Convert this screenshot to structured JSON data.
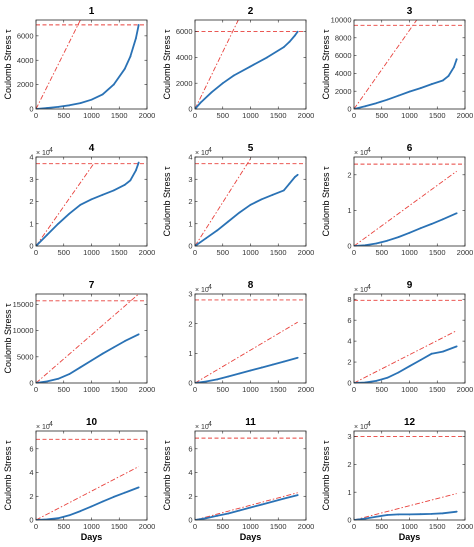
{
  "chart_data": [
    {
      "type": "line",
      "title": "1",
      "xlabel": "",
      "ylabel": "Coulomb Stress τ",
      "xlim": [
        0,
        2000
      ],
      "xticks": [
        "0",
        "500",
        "1000",
        "1500",
        "2000"
      ],
      "ylim": [
        0,
        7300
      ],
      "yticks": [
        0,
        2000,
        4000,
        6000
      ],
      "ytick_labels": [
        "0",
        "2000",
        "4000",
        "6000"
      ],
      "multiplier": "",
      "threshold": 6900,
      "rate_line": {
        "x": [
          0,
          800
        ],
        "y": [
          0,
          7300
        ]
      },
      "series": [
        {
          "x": [
            0,
            200,
            400,
            600,
            800,
            1000,
            1200,
            1400,
            1600,
            1700,
            1800,
            1850
          ],
          "y": [
            0,
            80,
            170,
            300,
            480,
            760,
            1200,
            2000,
            3300,
            4300,
            5800,
            6900
          ]
        }
      ]
    },
    {
      "type": "line",
      "title": "2",
      "xlabel": "",
      "ylabel": "Coulomb Stress τ",
      "xlim": [
        0,
        2000
      ],
      "xticks": [
        "0",
        "500",
        "1000",
        "1500",
        "2000"
      ],
      "ylim": [
        0,
        6900
      ],
      "yticks": [
        0,
        2000,
        4000,
        6000
      ],
      "ytick_labels": [
        "0",
        "2000",
        "4000",
        "6000"
      ],
      "multiplier": "",
      "threshold": 6000,
      "rate_line": {
        "x": [
          0,
          780
        ],
        "y": [
          0,
          6900
        ]
      },
      "series": [
        {
          "x": [
            0,
            100,
            300,
            500,
            700,
            1000,
            1300,
            1600,
            1700,
            1800,
            1850
          ],
          "y": [
            0,
            500,
            1300,
            2000,
            2600,
            3300,
            4000,
            4800,
            5200,
            5700,
            6000
          ]
        }
      ]
    },
    {
      "type": "line",
      "title": "3",
      "xlabel": "",
      "ylabel": "Coulomb Stress τ",
      "xlim": [
        0,
        2000
      ],
      "xticks": [
        "0",
        "500",
        "1000",
        "1500",
        "2000"
      ],
      "ylim": [
        0,
        10000
      ],
      "yticks": [
        0,
        2000,
        4000,
        6000,
        8000,
        10000
      ],
      "ytick_labels": [
        "0",
        "2000",
        "4000",
        "6000",
        "8000",
        "10000"
      ],
      "multiplier": "",
      "threshold": 9400,
      "rate_line": {
        "x": [
          0,
          1130
        ],
        "y": [
          0,
          10000
        ]
      },
      "series": [
        {
          "x": [
            0,
            200,
            400,
            600,
            800,
            1000,
            1200,
            1400,
            1600,
            1700,
            1800,
            1850
          ],
          "y": [
            0,
            300,
            650,
            1050,
            1500,
            1950,
            2350,
            2800,
            3200,
            3700,
            4700,
            5600
          ]
        }
      ]
    },
    {
      "type": "line",
      "title": "4",
      "xlabel": "",
      "ylabel": "",
      "xlim": [
        0,
        2000
      ],
      "xticks": [
        "0",
        "500",
        "1000",
        "1500",
        "2000"
      ],
      "ylim": [
        0,
        4
      ],
      "yticks": [
        0,
        1,
        2,
        3,
        4
      ],
      "ytick_labels": [
        "0",
        "1",
        "2",
        "3",
        "4"
      ],
      "multiplier": "× 10",
      "threshold": 3.7,
      "rate_line": {
        "x": [
          0,
          1040
        ],
        "y": [
          0,
          3.7
        ]
      },
      "series": [
        {
          "x": [
            0,
            200,
            400,
            600,
            800,
            1000,
            1200,
            1400,
            1600,
            1700,
            1800,
            1850
          ],
          "y": [
            0,
            0.5,
            1.0,
            1.45,
            1.85,
            2.1,
            2.3,
            2.5,
            2.75,
            2.95,
            3.4,
            3.75
          ]
        }
      ]
    },
    {
      "type": "line",
      "title": "5",
      "xlabel": "",
      "ylabel": "Coulomb Stress τ",
      "xlim": [
        0,
        2000
      ],
      "xticks": [
        "0",
        "500",
        "1000",
        "1500",
        "2000"
      ],
      "ylim": [
        0,
        4
      ],
      "yticks": [
        0,
        1,
        2,
        3,
        4
      ],
      "ytick_labels": [
        "0",
        "1",
        "2",
        "3",
        "4"
      ],
      "multiplier": "× 10",
      "threshold": 3.7,
      "rate_line": {
        "x": [
          0,
          1020
        ],
        "y": [
          0,
          4.0
        ]
      },
      "series": [
        {
          "x": [
            0,
            200,
            400,
            600,
            800,
            1000,
            1200,
            1400,
            1600,
            1700,
            1800,
            1850
          ],
          "y": [
            0,
            0.35,
            0.7,
            1.1,
            1.5,
            1.85,
            2.1,
            2.3,
            2.5,
            2.8,
            3.1,
            3.2
          ]
        }
      ]
    },
    {
      "type": "line",
      "title": "6",
      "xlabel": "",
      "ylabel": "Coulomb Stress τ",
      "xlim": [
        0,
        2000
      ],
      "xticks": [
        "0",
        "500",
        "1000",
        "1500",
        "2000"
      ],
      "ylim": [
        0,
        2.5
      ],
      "yticks": [
        0,
        1,
        2
      ],
      "ytick_labels": [
        "0",
        "1",
        "2"
      ],
      "multiplier": "× 10",
      "threshold": 2.3,
      "rate_line": {
        "x": [
          0,
          1850
        ],
        "y": [
          0,
          2.1
        ]
      },
      "series": [
        {
          "x": [
            0,
            200,
            400,
            600,
            800,
            1000,
            1200,
            1400,
            1600,
            1850
          ],
          "y": [
            0,
            0.02,
            0.07,
            0.15,
            0.25,
            0.37,
            0.5,
            0.62,
            0.75,
            0.92
          ]
        }
      ]
    },
    {
      "type": "line",
      "title": "7",
      "xlabel": "",
      "ylabel": "Coulomb Stress τ",
      "xlim": [
        0,
        2000
      ],
      "xticks": [
        "0",
        "500",
        "1000",
        "1500",
        "2000"
      ],
      "ylim": [
        0,
        17000
      ],
      "yticks": [
        0,
        5000,
        10000,
        15000
      ],
      "ytick_labels": [
        "0",
        "5000",
        "10000",
        "15000"
      ],
      "multiplier": "",
      "threshold": 15700,
      "rate_line": {
        "x": [
          0,
          1850
        ],
        "y": [
          0,
          17000
        ]
      },
      "series": [
        {
          "x": [
            0,
            200,
            400,
            600,
            800,
            1000,
            1200,
            1400,
            1600,
            1850
          ],
          "y": [
            0,
            300,
            800,
            1700,
            3000,
            4300,
            5600,
            6800,
            8000,
            9300
          ]
        }
      ]
    },
    {
      "type": "line",
      "title": "8",
      "xlabel": "",
      "ylabel": "",
      "xlim": [
        0,
        2000
      ],
      "xticks": [
        "0",
        "500",
        "1000",
        "1500",
        "2000"
      ],
      "ylim": [
        0,
        3
      ],
      "yticks": [
        0,
        1,
        2,
        3
      ],
      "ytick_labels": [
        "0",
        "1",
        "2",
        "3"
      ],
      "multiplier": "× 10",
      "threshold": 2.8,
      "rate_line": {
        "x": [
          0,
          1850
        ],
        "y": [
          0,
          2.05
        ]
      },
      "series": [
        {
          "x": [
            0,
            200,
            400,
            600,
            800,
            1000,
            1200,
            1400,
            1600,
            1850
          ],
          "y": [
            0,
            0.05,
            0.12,
            0.22,
            0.32,
            0.42,
            0.52,
            0.62,
            0.72,
            0.85
          ]
        }
      ]
    },
    {
      "type": "line",
      "title": "9",
      "xlabel": "",
      "ylabel": "",
      "xlim": [
        0,
        2000
      ],
      "xticks": [
        "0",
        "500",
        "1000",
        "1500",
        "2000"
      ],
      "ylim": [
        0,
        8.5
      ],
      "yticks": [
        0,
        2,
        4,
        6,
        8
      ],
      "ytick_labels": [
        "0",
        "2",
        "4",
        "6",
        "8"
      ],
      "multiplier": "× 10",
      "threshold": 7.9,
      "rate_line": {
        "x": [
          0,
          1850
        ],
        "y": [
          0,
          5.0
        ]
      },
      "series": [
        {
          "x": [
            0,
            200,
            400,
            600,
            800,
            1000,
            1200,
            1400,
            1600,
            1850
          ],
          "y": [
            0,
            0.05,
            0.2,
            0.5,
            1.0,
            1.6,
            2.2,
            2.8,
            3.0,
            3.5
          ]
        }
      ]
    },
    {
      "type": "line",
      "title": "10",
      "xlabel": "Days",
      "ylabel": "Coulomb Stress τ",
      "xlim": [
        0,
        2000
      ],
      "xticks": [
        "0",
        "500",
        "1000",
        "1500",
        "2000"
      ],
      "ylim": [
        0,
        7.5
      ],
      "yticks": [
        0,
        2,
        4,
        6
      ],
      "ytick_labels": [
        "0",
        "2",
        "4",
        "6"
      ],
      "multiplier": "× 10",
      "threshold": 6.8,
      "rate_line": {
        "x": [
          0,
          1850
        ],
        "y": [
          0,
          4.5
        ]
      },
      "series": [
        {
          "x": [
            0,
            200,
            400,
            600,
            800,
            1000,
            1200,
            1400,
            1600,
            1850
          ],
          "y": [
            0,
            0.05,
            0.15,
            0.4,
            0.75,
            1.15,
            1.55,
            1.95,
            2.3,
            2.75
          ]
        }
      ]
    },
    {
      "type": "line",
      "title": "11",
      "xlabel": "Days",
      "ylabel": "Coulomb Stress τ",
      "xlim": [
        0,
        2000
      ],
      "xticks": [
        "0",
        "500",
        "1000",
        "1500",
        "2000"
      ],
      "ylim": [
        0,
        7.5
      ],
      "yticks": [
        0,
        2,
        4,
        6
      ],
      "ytick_labels": [
        "0",
        "2",
        "4",
        "6"
      ],
      "multiplier": "× 10",
      "threshold": 6.9,
      "rate_line": {
        "x": [
          0,
          1850
        ],
        "y": [
          0,
          2.3
        ]
      },
      "series": [
        {
          "x": [
            0,
            200,
            400,
            600,
            800,
            1000,
            1200,
            1400,
            1600,
            1850
          ],
          "y": [
            0,
            0.15,
            0.35,
            0.55,
            0.8,
            1.05,
            1.3,
            1.55,
            1.8,
            2.1
          ]
        }
      ]
    },
    {
      "type": "line",
      "title": "12",
      "xlabel": "Days",
      "ylabel": "Coulomb Stress τ",
      "xlim": [
        0,
        2000
      ],
      "xticks": [
        "0",
        "500",
        "1000",
        "1500",
        "2000"
      ],
      "ylim": [
        0,
        3.2
      ],
      "yticks": [
        0,
        1,
        2,
        3
      ],
      "ytick_labels": [
        "0",
        "1",
        "2",
        "3"
      ],
      "multiplier": "× 10",
      "threshold": 3.0,
      "rate_line": {
        "x": [
          0,
          1850
        ],
        "y": [
          0,
          0.95
        ]
      },
      "series": [
        {
          "x": [
            0,
            200,
            400,
            600,
            800,
            1000,
            1200,
            1400,
            1600,
            1850
          ],
          "y": [
            0,
            0.05,
            0.12,
            0.18,
            0.2,
            0.2,
            0.21,
            0.22,
            0.24,
            0.3
          ]
        }
      ]
    }
  ],
  "colors": {
    "series": "#2a72b5",
    "rate_line": "#e8413c",
    "threshold": "#e8413c",
    "axis": "#262626"
  },
  "multiplier_exponent": "4"
}
